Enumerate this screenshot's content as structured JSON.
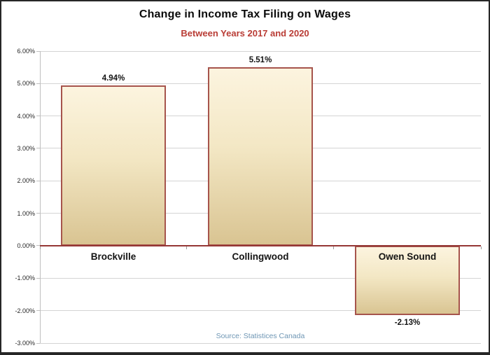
{
  "window": {
    "background": "#ffffff",
    "border_color": "#262626"
  },
  "header": {
    "title": "Change in Income Tax Filing on Wages",
    "subtitle": "Between Years 2017 and 2020",
    "title_color": "#0a0a0a",
    "subtitle_color": "#b93c35"
  },
  "footer": {
    "source_label": "Source: Statistices Canada",
    "source_color": "#6e96b4"
  },
  "chart_data": {
    "type": "bar",
    "title": "Change in Income Tax Filing on Wages",
    "subtitle": "Between Years 2017 and 2020",
    "categories": [
      "Brockville",
      "Collingwood",
      "Owen Sound"
    ],
    "values": [
      4.94,
      5.51,
      -2.13
    ],
    "data_labels": [
      "4.94%",
      "5.51%",
      "-2.13%"
    ],
    "xlabel": "",
    "ylabel": "",
    "ylim": [
      -3,
      6
    ],
    "ytick_step": 1,
    "ytick_labels": [
      "6.00%",
      "5.00%",
      "4.00%",
      "3.00%",
      "2.00%",
      "1.00%",
      "0.00%",
      "-1.00%",
      "-2.00%",
      "-3.00%"
    ],
    "grid": true,
    "legend": false,
    "annotations": [
      "Source: Statistices Canada"
    ],
    "colors": {
      "bar_fill_top": "#fcf4df",
      "bar_fill_bottom": "#d9c492",
      "bar_border": "#a6544c",
      "zero_line": "#953735",
      "gridline": "#d4d4d4",
      "axis": "#bfbfbf",
      "data_label": "#141414",
      "category_label": "#141414"
    }
  }
}
